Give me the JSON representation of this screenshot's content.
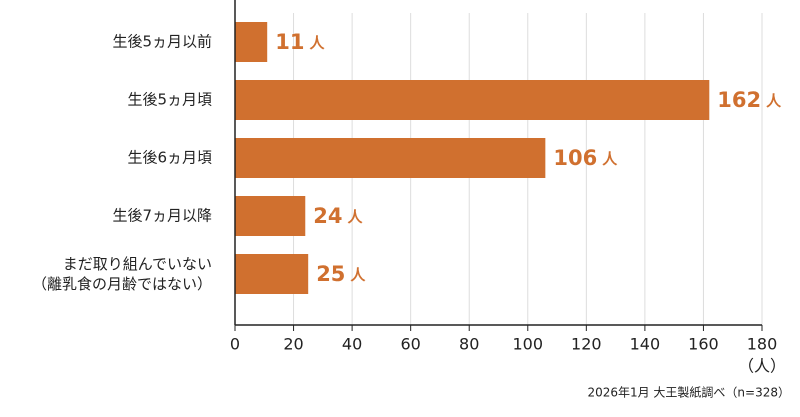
{
  "chart_data": {
    "type": "bar",
    "orientation": "horizontal",
    "categories": [
      "生後5ヵ月以前",
      "生後5ヵ月頃",
      "生後6ヵ月頃",
      "生後7ヵ月以降",
      "まだ取り組んでいない\n（離乳食の月齢ではない）"
    ],
    "values": [
      11,
      162,
      106,
      24,
      25
    ],
    "value_unit": "人",
    "color": "#d0702f",
    "xlim": [
      0,
      180
    ],
    "xticks": [
      0,
      20,
      40,
      60,
      80,
      100,
      120,
      140,
      160,
      180
    ],
    "x_axis_label": "（人）",
    "grid": true,
    "note": "2026年1月 大王製紙調べ（n=328）"
  }
}
